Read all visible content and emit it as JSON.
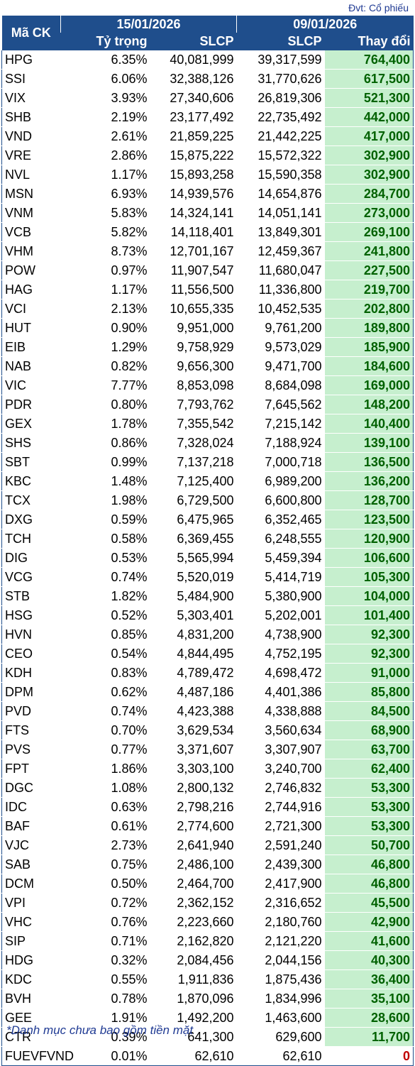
{
  "unit_label": "Đvt: Cổ phiếu",
  "header": {
    "ticker": "Mã CK",
    "date1": "15/01/2026",
    "date2": "09/01/2026",
    "weight": "Tỷ trọng",
    "shares1": "SLCP",
    "shares2": "SLCP",
    "change": "Thay đổi"
  },
  "rows": [
    {
      "code": "HPG",
      "weight": "6.35%",
      "s1": "40,081,999",
      "s2": "39,317,599",
      "change": "764,400"
    },
    {
      "code": "SSI",
      "weight": "6.06%",
      "s1": "32,388,126",
      "s2": "31,770,626",
      "change": "617,500"
    },
    {
      "code": "VIX",
      "weight": "3.93%",
      "s1": "27,340,606",
      "s2": "26,819,306",
      "change": "521,300"
    },
    {
      "code": "SHB",
      "weight": "2.19%",
      "s1": "23,177,492",
      "s2": "22,735,492",
      "change": "442,000"
    },
    {
      "code": "VND",
      "weight": "2.61%",
      "s1": "21,859,225",
      "s2": "21,442,225",
      "change": "417,000"
    },
    {
      "code": "VRE",
      "weight": "2.86%",
      "s1": "15,875,222",
      "s2": "15,572,322",
      "change": "302,900"
    },
    {
      "code": "NVL",
      "weight": "1.17%",
      "s1": "15,893,258",
      "s2": "15,590,358",
      "change": "302,900"
    },
    {
      "code": "MSN",
      "weight": "6.93%",
      "s1": "14,939,576",
      "s2": "14,654,876",
      "change": "284,700"
    },
    {
      "code": "VNM",
      "weight": "5.83%",
      "s1": "14,324,141",
      "s2": "14,051,141",
      "change": "273,000"
    },
    {
      "code": "VCB",
      "weight": "5.82%",
      "s1": "14,118,401",
      "s2": "13,849,301",
      "change": "269,100"
    },
    {
      "code": "VHM",
      "weight": "8.73%",
      "s1": "12,701,167",
      "s2": "12,459,367",
      "change": "241,800"
    },
    {
      "code": "POW",
      "weight": "0.97%",
      "s1": "11,907,547",
      "s2": "11,680,047",
      "change": "227,500"
    },
    {
      "code": "HAG",
      "weight": "1.17%",
      "s1": "11,556,500",
      "s2": "11,336,800",
      "change": "219,700"
    },
    {
      "code": "VCI",
      "weight": "2.13%",
      "s1": "10,655,335",
      "s2": "10,452,535",
      "change": "202,800"
    },
    {
      "code": "HUT",
      "weight": "0.90%",
      "s1": "9,951,000",
      "s2": "9,761,200",
      "change": "189,800"
    },
    {
      "code": "EIB",
      "weight": "1.29%",
      "s1": "9,758,929",
      "s2": "9,573,029",
      "change": "185,900"
    },
    {
      "code": "NAB",
      "weight": "0.82%",
      "s1": "9,656,300",
      "s2": "9,471,700",
      "change": "184,600"
    },
    {
      "code": "VIC",
      "weight": "7.77%",
      "s1": "8,853,098",
      "s2": "8,684,098",
      "change": "169,000"
    },
    {
      "code": "PDR",
      "weight": "0.80%",
      "s1": "7,793,762",
      "s2": "7,645,562",
      "change": "148,200"
    },
    {
      "code": "GEX",
      "weight": "1.78%",
      "s1": "7,355,542",
      "s2": "7,215,142",
      "change": "140,400"
    },
    {
      "code": "SHS",
      "weight": "0.86%",
      "s1": "7,328,024",
      "s2": "7,188,924",
      "change": "139,100"
    },
    {
      "code": "SBT",
      "weight": "0.99%",
      "s1": "7,137,218",
      "s2": "7,000,718",
      "change": "136,500"
    },
    {
      "code": "KBC",
      "weight": "1.48%",
      "s1": "7,125,400",
      "s2": "6,989,200",
      "change": "136,200"
    },
    {
      "code": "TCX",
      "weight": "1.98%",
      "s1": "6,729,500",
      "s2": "6,600,800",
      "change": "128,700"
    },
    {
      "code": "DXG",
      "weight": "0.59%",
      "s1": "6,475,965",
      "s2": "6,352,465",
      "change": "123,500"
    },
    {
      "code": "TCH",
      "weight": "0.58%",
      "s1": "6,369,455",
      "s2": "6,248,555",
      "change": "120,900"
    },
    {
      "code": "DIG",
      "weight": "0.53%",
      "s1": "5,565,994",
      "s2": "5,459,394",
      "change": "106,600"
    },
    {
      "code": "VCG",
      "weight": "0.74%",
      "s1": "5,520,019",
      "s2": "5,414,719",
      "change": "105,300"
    },
    {
      "code": "STB",
      "weight": "1.82%",
      "s1": "5,484,900",
      "s2": "5,380,900",
      "change": "104,000"
    },
    {
      "code": "HSG",
      "weight": "0.52%",
      "s1": "5,303,401",
      "s2": "5,202,001",
      "change": "101,400"
    },
    {
      "code": "HVN",
      "weight": "0.85%",
      "s1": "4,831,200",
      "s2": "4,738,900",
      "change": "92,300"
    },
    {
      "code": "CEO",
      "weight": "0.54%",
      "s1": "4,844,495",
      "s2": "4,752,195",
      "change": "92,300"
    },
    {
      "code": "KDH",
      "weight": "0.83%",
      "s1": "4,789,472",
      "s2": "4,698,472",
      "change": "91,000"
    },
    {
      "code": "DPM",
      "weight": "0.62%",
      "s1": "4,487,186",
      "s2": "4,401,386",
      "change": "85,800"
    },
    {
      "code": "PVD",
      "weight": "0.74%",
      "s1": "4,423,388",
      "s2": "4,338,888",
      "change": "84,500"
    },
    {
      "code": "FTS",
      "weight": "0.70%",
      "s1": "3,629,534",
      "s2": "3,560,634",
      "change": "68,900"
    },
    {
      "code": "PVS",
      "weight": "0.77%",
      "s1": "3,371,607",
      "s2": "3,307,907",
      "change": "63,700"
    },
    {
      "code": "FPT",
      "weight": "1.86%",
      "s1": "3,303,100",
      "s2": "3,240,700",
      "change": "62,400"
    },
    {
      "code": "DGC",
      "weight": "1.08%",
      "s1": "2,800,132",
      "s2": "2,746,832",
      "change": "53,300"
    },
    {
      "code": "IDC",
      "weight": "0.63%",
      "s1": "2,798,216",
      "s2": "2,744,916",
      "change": "53,300"
    },
    {
      "code": "BAF",
      "weight": "0.61%",
      "s1": "2,774,600",
      "s2": "2,721,300",
      "change": "53,300"
    },
    {
      "code": "VJC",
      "weight": "2.73%",
      "s1": "2,641,940",
      "s2": "2,591,240",
      "change": "50,700"
    },
    {
      "code": "SAB",
      "weight": "0.75%",
      "s1": "2,486,100",
      "s2": "2,439,300",
      "change": "46,800"
    },
    {
      "code": "DCM",
      "weight": "0.50%",
      "s1": "2,464,700",
      "s2": "2,417,900",
      "change": "46,800"
    },
    {
      "code": "VPI",
      "weight": "0.72%",
      "s1": "2,362,152",
      "s2": "2,316,652",
      "change": "45,500"
    },
    {
      "code": "VHC",
      "weight": "0.76%",
      "s1": "2,223,660",
      "s2": "2,180,760",
      "change": "42,900"
    },
    {
      "code": "SIP",
      "weight": "0.71%",
      "s1": "2,162,820",
      "s2": "2,121,220",
      "change": "41,600"
    },
    {
      "code": "HDG",
      "weight": "0.32%",
      "s1": "2,084,456",
      "s2": "2,044,156",
      "change": "40,300"
    },
    {
      "code": "KDC",
      "weight": "0.55%",
      "s1": "1,911,836",
      "s2": "1,875,436",
      "change": "36,400"
    },
    {
      "code": "BVH",
      "weight": "0.78%",
      "s1": "1,870,096",
      "s2": "1,834,996",
      "change": "35,100"
    },
    {
      "code": "GEE",
      "weight": "1.91%",
      "s1": "1,492,200",
      "s2": "1,463,600",
      "change": "28,600"
    },
    {
      "code": "CTR",
      "weight": "0.39%",
      "s1": "641,300",
      "s2": "629,600",
      "change": "11,700"
    },
    {
      "code": "FUEVFVND",
      "weight": "0.01%",
      "s1": "62,610",
      "s2": "62,610",
      "change": "0"
    }
  ],
  "colors": {
    "header_bg": "#1f4e8c",
    "change_bg": "#c6efce",
    "change_text": "#006100",
    "zero_text": "#c00000"
  },
  "footnote": "*Danh mục chưa bao gồm tiền mặt"
}
